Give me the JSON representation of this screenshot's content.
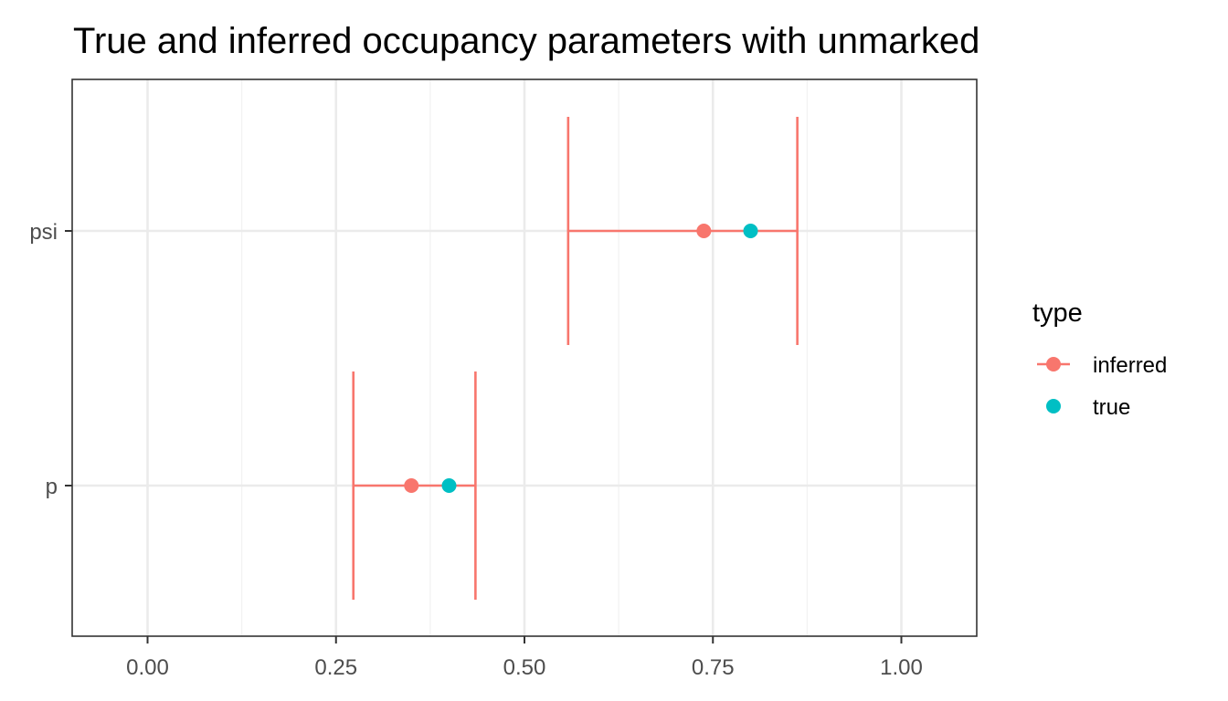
{
  "chart_data": {
    "type": "errorbar-point",
    "title": "True and inferred occupancy parameters with unmarked",
    "xlabel": "",
    "ylabel": "",
    "xlim": [
      -0.1,
      1.1
    ],
    "x_ticks": [
      0.0,
      0.25,
      0.5,
      0.75,
      1.0
    ],
    "x_tick_labels": [
      "0.00",
      "0.25",
      "0.50",
      "0.75",
      "1.00"
    ],
    "categories": [
      "psi",
      "p"
    ],
    "grid": true,
    "legend": {
      "title": "type",
      "placement": "right",
      "entries": [
        {
          "label": "inferred",
          "color": "#F8766D"
        },
        {
          "label": "true",
          "color": "#00BFC4"
        }
      ]
    },
    "series": [
      {
        "name": "inferred",
        "color": "#F8766D",
        "points": [
          {
            "category": "psi",
            "x": 0.738,
            "lower": 0.558,
            "upper": 0.862
          },
          {
            "category": "p",
            "x": 0.35,
            "lower": 0.273,
            "upper": 0.435
          }
        ]
      },
      {
        "name": "true",
        "color": "#00BFC4",
        "points": [
          {
            "category": "psi",
            "x": 0.8
          },
          {
            "category": "p",
            "x": 0.4
          }
        ]
      }
    ]
  }
}
